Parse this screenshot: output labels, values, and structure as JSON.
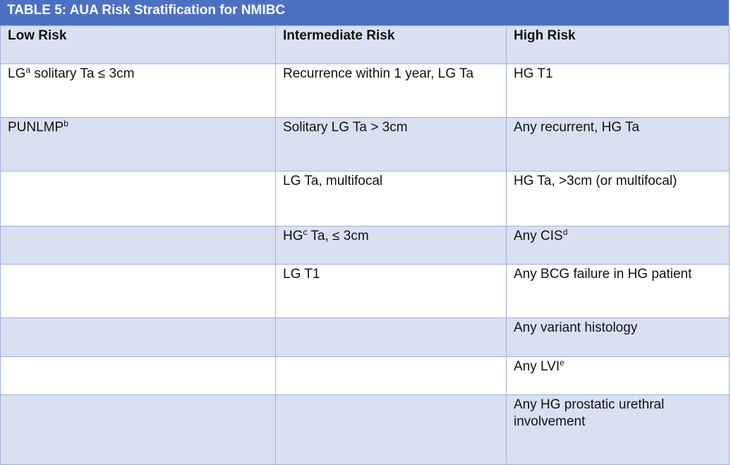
{
  "header": {
    "title": "TABLE 5: AUA Risk Stratification for NMIBC"
  },
  "table": {
    "columns": [
      "Low Risk",
      "Intermediate Risk",
      "High Risk"
    ],
    "rows": [
      [
        [
          {
            "text": "LG"
          },
          {
            "sup": "a"
          },
          {
            "text": " solitary Ta ≤ 3cm"
          }
        ],
        [
          {
            "text": "Recurrence within 1 year, LG Ta"
          }
        ],
        [
          {
            "text": "HG T1"
          }
        ]
      ],
      [
        [
          {
            "text": "PUNLMP"
          },
          {
            "sup": "b"
          }
        ],
        [
          {
            "text": "Solitary LG Ta > 3cm"
          }
        ],
        [
          {
            "text": "Any recurrent, HG Ta"
          }
        ]
      ],
      [
        [],
        [
          {
            "text": "LG Ta, multifocal"
          }
        ],
        [
          {
            "text": "HG Ta, >3cm (or multifocal)"
          }
        ]
      ],
      [
        [],
        [
          {
            "text": "HG"
          },
          {
            "sup": "c"
          },
          {
            "text": " Ta, ≤ 3cm"
          }
        ],
        [
          {
            "text": "Any CIS"
          },
          {
            "sup": "d"
          }
        ]
      ],
      [
        [],
        [
          {
            "text": "LG T1"
          }
        ],
        [
          {
            "text": "Any BCG failure in HG patient"
          }
        ]
      ],
      [
        [],
        [],
        [
          {
            "text": "Any variant histology"
          }
        ]
      ],
      [
        [],
        [],
        [
          {
            "text": "Any LVI"
          },
          {
            "sup": "e"
          }
        ]
      ],
      [
        [],
        [],
        [
          {
            "text": "Any HG prostatic urethral involvement"
          }
        ]
      ]
    ]
  }
}
